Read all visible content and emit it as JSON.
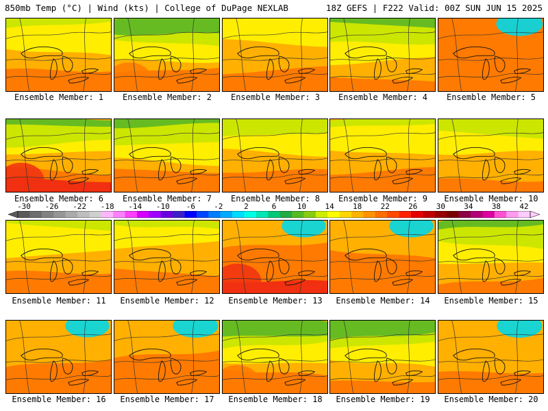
{
  "header": {
    "left": "850mb Temp (°C) | Wind (kts) | College of DuPage NEXLAB",
    "right": "18Z GEFS | F222 Valid: 00Z SUN JUN 15 2025"
  },
  "members": [
    {
      "label": "Ensemble Member: 1",
      "cool": 0.45,
      "warm": 0.55
    },
    {
      "label": "Ensemble Member: 2",
      "cool": 0.25,
      "warm": 0.75
    },
    {
      "label": "Ensemble Member: 3",
      "cool": 0.55,
      "warm": 0.5
    },
    {
      "label": "Ensemble Member: 4",
      "cool": 0.35,
      "warm": 0.35
    },
    {
      "label": "Ensemble Member: 5",
      "cool": 0.8,
      "warm": 0.3
    },
    {
      "label": "Ensemble Member: 6",
      "cool": 0.3,
      "warm": 0.8
    },
    {
      "label": "Ensemble Member: 7",
      "cool": 0.3,
      "warm": 0.6
    },
    {
      "label": "Ensemble Member: 8",
      "cool": 0.4,
      "warm": 0.5
    },
    {
      "label": "Ensemble Member: 9",
      "cool": 0.45,
      "warm": 0.45
    },
    {
      "label": "Ensemble Member: 10",
      "cool": 0.4,
      "warm": 0.4
    },
    {
      "label": "Ensemble Member: 11",
      "cool": 0.45,
      "warm": 0.6
    },
    {
      "label": "Ensemble Member: 12",
      "cool": 0.5,
      "warm": 0.6
    },
    {
      "label": "Ensemble Member: 13",
      "cool": 0.7,
      "warm": 0.85
    },
    {
      "label": "Ensemble Member: 14",
      "cool": 0.7,
      "warm": 0.5
    },
    {
      "label": "Ensemble Member: 15",
      "cool": 0.35,
      "warm": 0.45
    },
    {
      "label": "Ensemble Member: 16",
      "cool": 0.7,
      "warm": 0.45
    },
    {
      "label": "Ensemble Member: 17",
      "cool": 0.75,
      "warm": 0.4
    },
    {
      "label": "Ensemble Member: 18",
      "cool": 0.25,
      "warm": 0.7
    },
    {
      "label": "Ensemble Member: 19",
      "cool": 0.25,
      "warm": 0.5
    },
    {
      "label": "Ensemble Member: 20",
      "cool": 0.75,
      "warm": 0.3
    }
  ],
  "colorbar": {
    "ticks": [
      "-30",
      "-26",
      "-22",
      "-18",
      "-14",
      "-10",
      "-6",
      "-2",
      "2",
      "6",
      "10",
      "14",
      "18",
      "22",
      "26",
      "30",
      "34",
      "38",
      "42"
    ],
    "colors": [
      "#5a5a5a",
      "#6e6e6e",
      "#828282",
      "#969696",
      "#aaaaaa",
      "#bebebe",
      "#cfcfcf",
      "#ffb6ff",
      "#ff80ff",
      "#ff40ff",
      "#d500ff",
      "#a000ff",
      "#6a00e0",
      "#3c1fc8",
      "#0000ff",
      "#0045ff",
      "#007fff",
      "#00aaff",
      "#00dcff",
      "#00ffe6",
      "#00e6b4",
      "#00c878",
      "#22aa44",
      "#55bb22",
      "#88cc11",
      "#ccee00",
      "#ffff00",
      "#ffd700",
      "#ffb300",
      "#ff9200",
      "#ff6e00",
      "#ff4a00",
      "#ff2200",
      "#e60000",
      "#c00000",
      "#960000",
      "#780000",
      "#8c0046",
      "#b40078",
      "#dc00a0",
      "#ff50d2",
      "#ff9af0",
      "#ffccff"
    ]
  },
  "field_colors": {
    "deep_cool": "#00d8e8",
    "cool": "#22a040",
    "mid_green": "#66bb22",
    "yellow_green": "#cce600",
    "yellow": "#ffee00",
    "orange": "#ffb000",
    "deep_orange": "#ff7a00",
    "red": "#f03010"
  }
}
